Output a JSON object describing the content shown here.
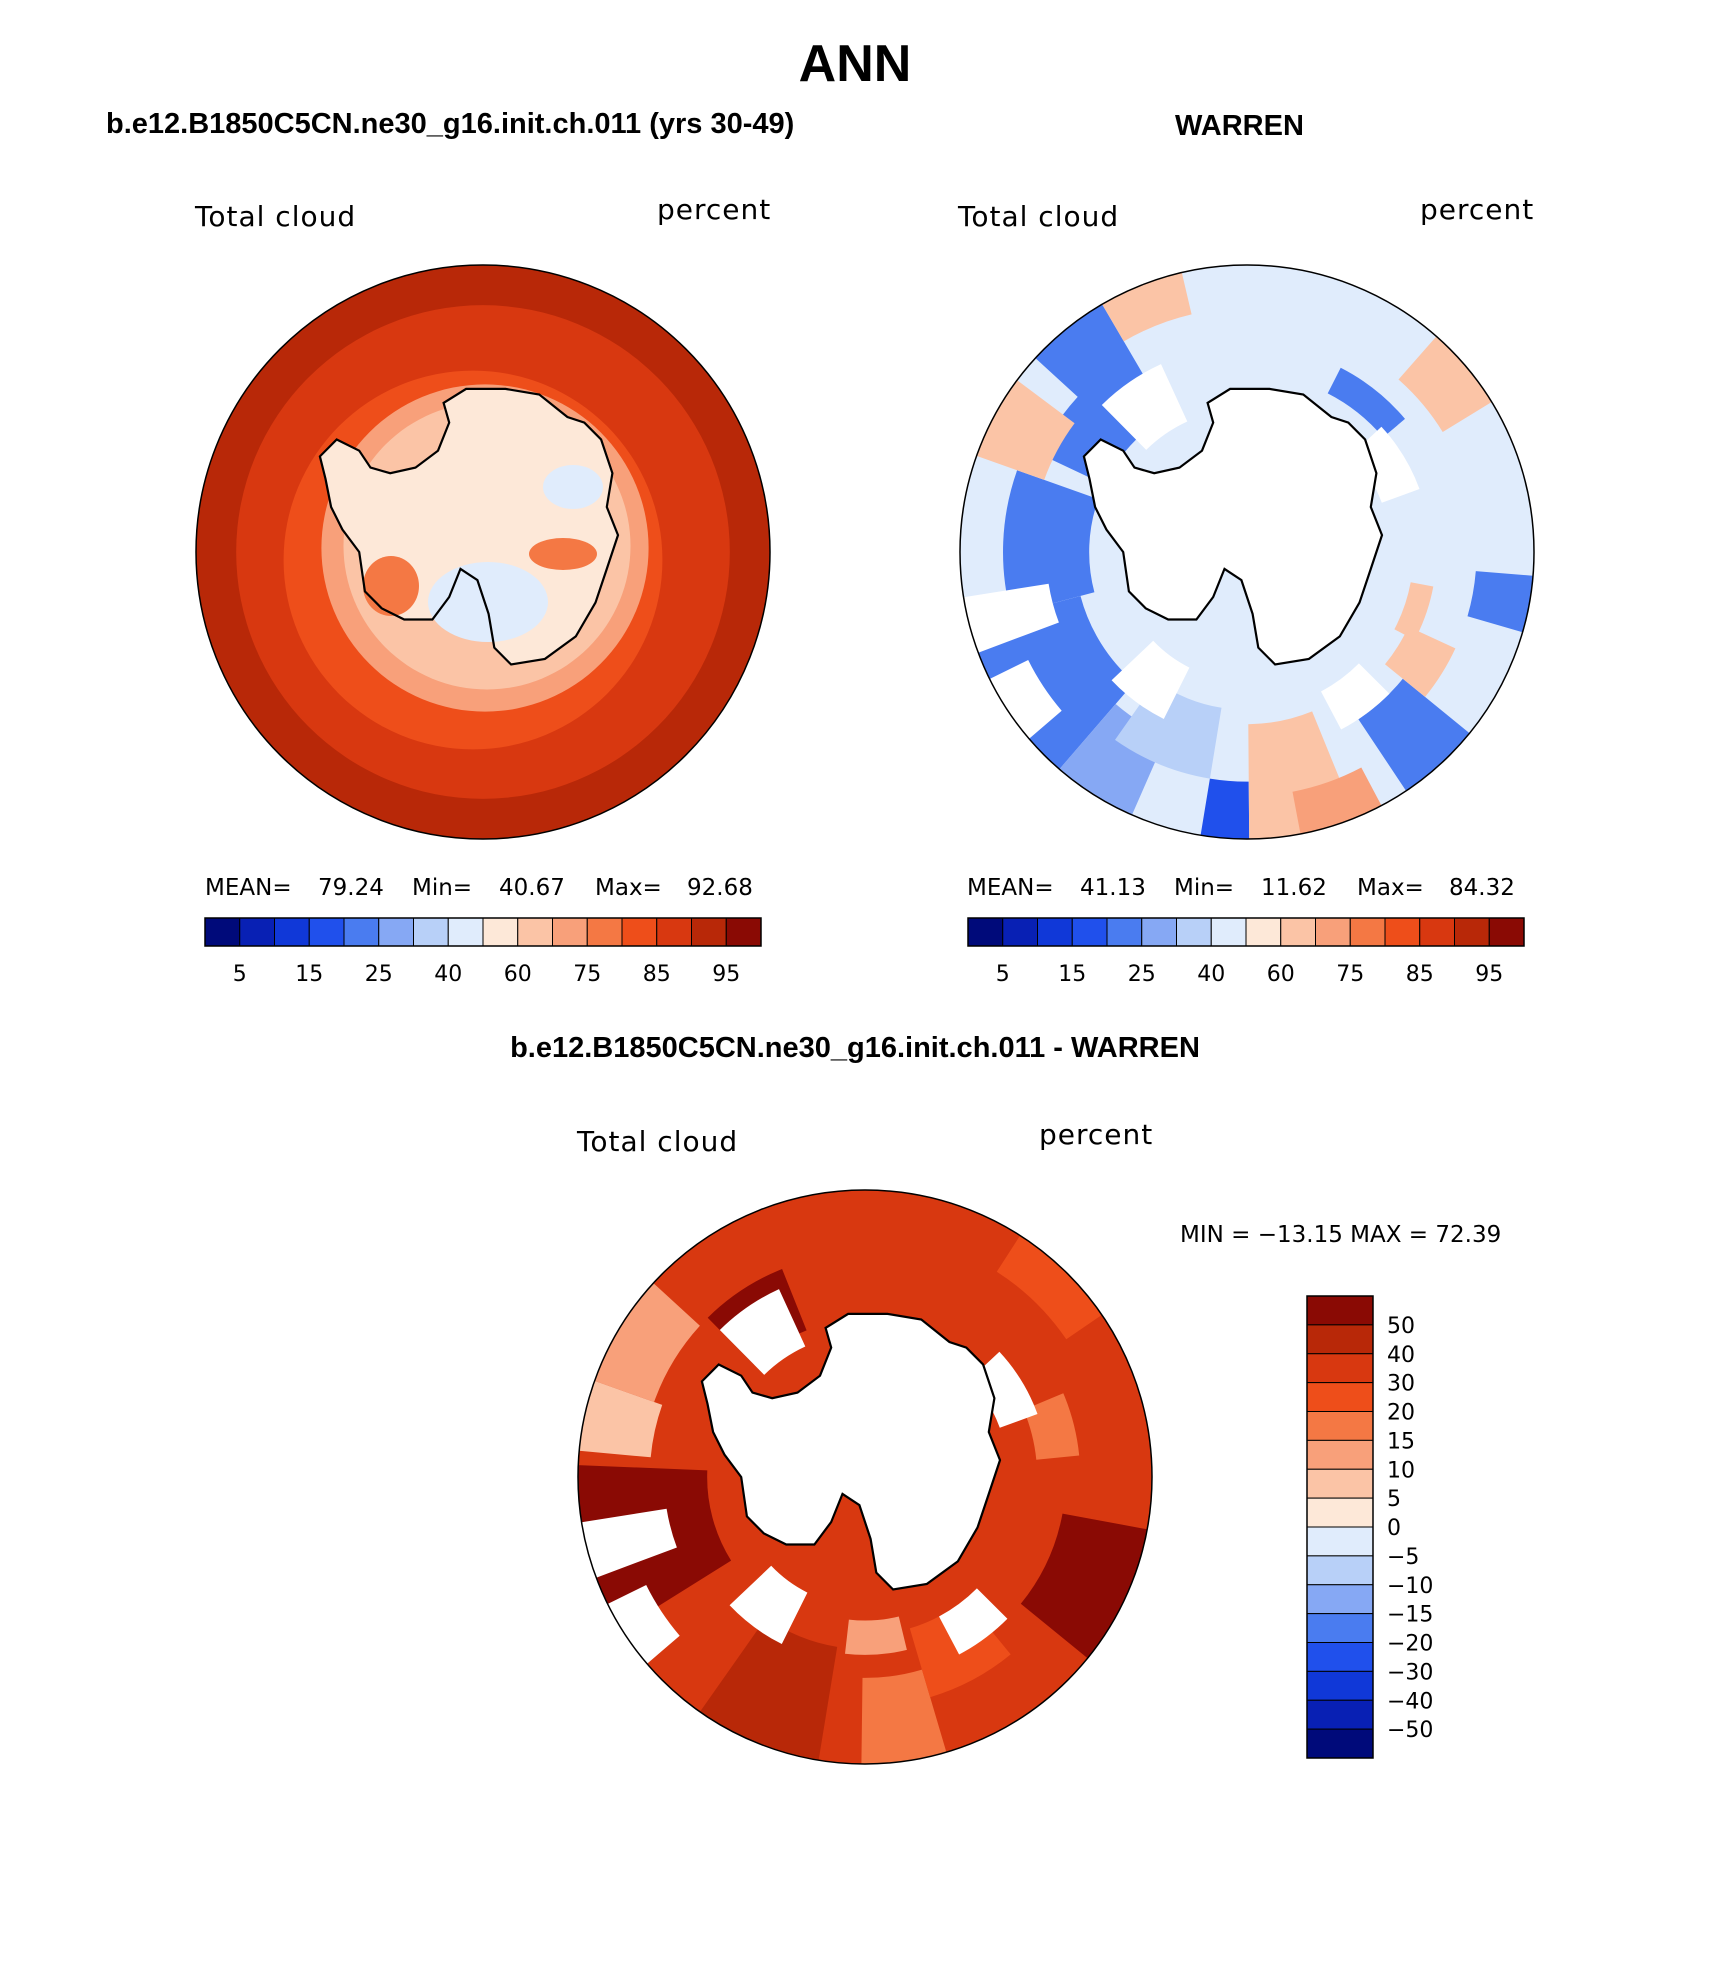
{
  "title": "ANN",
  "colors": {
    "main_scale": [
      "#000a7a",
      "#0820b4",
      "#1038d8",
      "#2050ec",
      "#4a7cf0",
      "#86a8f4",
      "#b8d0f8",
      "#e0ecfc",
      "#fde8d8",
      "#fbc4a6",
      "#f8a07a",
      "#f47844",
      "#ee4e1a",
      "#d83810",
      "#b82808",
      "#8a0a04"
    ],
    "land_white": "#ffffff",
    "coast": "#000000"
  },
  "panels": [
    {
      "id": "model",
      "header": "b.e12.B1850C5CN.ne30_g16.init.ch.011 (yrs 30-49)",
      "variable_label": "Total cloud",
      "units_label": "percent",
      "stats": {
        "mean_label": "MEAN=",
        "mean": "79.24",
        "min_label": "Min=",
        "min": "40.67",
        "max_label": "Max=",
        "max": "92.68"
      },
      "colorbar_ticks": [
        "5",
        "15",
        "25",
        "40",
        "60",
        "75",
        "85",
        "95"
      ]
    },
    {
      "id": "obs",
      "header": "WARREN",
      "variable_label": "Total cloud",
      "units_label": "percent",
      "stats": {
        "mean_label": "MEAN=",
        "mean": "41.13",
        "min_label": "Min=",
        "min": "11.62",
        "max_label": "Max=",
        "max": "84.32"
      },
      "colorbar_ticks": [
        "5",
        "15",
        "25",
        "40",
        "60",
        "75",
        "85",
        "95"
      ]
    },
    {
      "id": "diff",
      "header": "b.e12.B1850C5CN.ne30_g16.init.ch.011 - WARREN",
      "variable_label": "Total cloud",
      "units_label": "percent",
      "minmax_text": "MIN = −13.15 MAX =   72.39",
      "colorbar_ticks": [
        "50",
        "40",
        "30",
        "20",
        "15",
        "10",
        "5",
        "0",
        "−5",
        "−10",
        "−15",
        "−20",
        "−30",
        "−40",
        "−50"
      ]
    }
  ]
}
